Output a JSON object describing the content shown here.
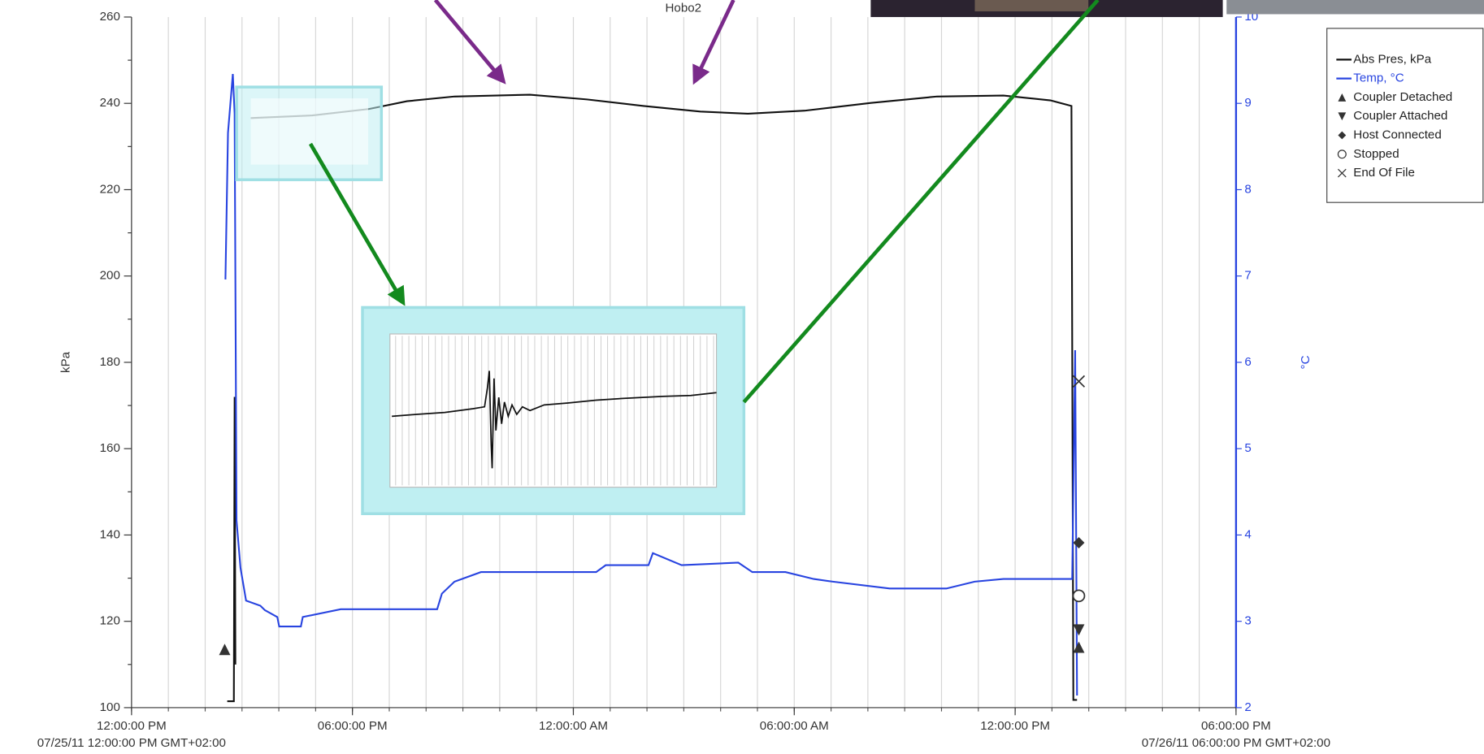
{
  "chart_data": {
    "type": "line",
    "annotations": [
      "Hobo2"
    ],
    "ylabel": "kPa",
    "y2label": "°C",
    "xlim": [
      0,
      30
    ],
    "xticks": [
      {
        "value": 0,
        "label": "12:00:00 PM"
      },
      {
        "value": 6,
        "label": "06:00:00 PM"
      },
      {
        "value": 12,
        "label": "12:00:00 AM"
      },
      {
        "value": 18,
        "label": "06:00:00 AM"
      },
      {
        "value": 24,
        "label": "12:00:00 PM"
      },
      {
        "value": 30,
        "label": "06:00:00 PM"
      }
    ],
    "x_range_labels": [
      "07/25/11 12:00:00 PM GMT+02:00",
      "07/26/11 06:00:00 PM GMT+02:00"
    ],
    "xminorticks": [
      0,
      1,
      2,
      3,
      4,
      5,
      6,
      7,
      8,
      9,
      10,
      11,
      12,
      13,
      14,
      15,
      16,
      17,
      18,
      19,
      20,
      21,
      22,
      23,
      24,
      25,
      26,
      27,
      28,
      29,
      30
    ],
    "ylim": [
      100,
      260
    ],
    "yticks": [
      100,
      120,
      140,
      160,
      180,
      200,
      220,
      240,
      260
    ],
    "yminorticks": [
      110,
      130,
      150,
      170,
      190,
      210,
      230,
      250
    ],
    "y2lim": [
      2,
      10
    ],
    "y2ticks": [
      2,
      3,
      4,
      5,
      6,
      7,
      8,
      9,
      10
    ],
    "grid": true,
    "legend": "upper right",
    "series": [
      {
        "name": "Abs Pres, kPa",
        "color": "#111111",
        "marker": "line",
        "x": [
          2.6,
          2.78,
          2.8,
          2.82,
          3.0,
          3.24,
          4.91,
          6.45,
          7.48,
          8.77,
          10.82,
          12.37,
          13.91,
          15.45,
          16.74,
          18.28,
          20.08,
          21.88,
          23.68,
          24.96,
          25.53,
          25.58,
          25.68
        ],
        "values": [
          101.5,
          101.5,
          172,
          110,
          null,
          236.6,
          237.2,
          238.7,
          240.5,
          241.6,
          242.0,
          240.9,
          239.4,
          238.1,
          237.6,
          238.3,
          240.1,
          241.6,
          241.8,
          240.7,
          239.4,
          101.8,
          101.8
        ]
      },
      {
        "name": "Temp, °C",
        "color": "#2844e0",
        "marker": "line",
        "axis": "y2",
        "x": [
          2.55,
          2.62,
          2.75,
          2.8,
          2.85,
          2.96,
          3.11,
          3.5,
          3.62,
          3.96,
          4.01,
          4.6,
          4.65,
          5.68,
          8.3,
          8.43,
          8.77,
          9.49,
          12.62,
          12.88,
          14.04,
          14.16,
          14.94,
          16.48,
          16.86,
          17.76,
          18.53,
          19.05,
          20.59,
          22.13,
          22.9,
          23.68,
          25.55,
          25.63,
          25.68
        ],
        "values": [
          6.96,
          8.66,
          9.34,
          8.88,
          4.17,
          3.62,
          3.24,
          3.18,
          3.13,
          3.05,
          2.94,
          2.94,
          3.05,
          3.14,
          3.14,
          3.32,
          3.46,
          3.57,
          3.57,
          3.65,
          3.65,
          3.79,
          3.65,
          3.68,
          3.57,
          3.57,
          3.49,
          3.46,
          3.38,
          3.38,
          3.46,
          3.49,
          3.49,
          6.14,
          2.14
        ]
      },
      {
        "name": "Coupler Detached",
        "color": "#333333",
        "marker": "triangle-up",
        "x": [
          2.53,
          25.73
        ],
        "values": [
          113.5,
          114.0
        ]
      },
      {
        "name": "Coupler Attached",
        "color": "#333333",
        "marker": "triangle-down",
        "x": [
          25.73
        ],
        "values": [
          118.0
        ]
      },
      {
        "name": "Host Connected",
        "color": "#333333",
        "marker": "diamond",
        "x": [
          25.73
        ],
        "values": [
          138.2
        ]
      },
      {
        "name": "Stopped",
        "color": "#333333",
        "marker": "circle-open",
        "x": [
          25.73
        ],
        "values": [
          125.9
        ]
      },
      {
        "name": "End Of File",
        "color": "#333333",
        "marker": "x",
        "x": [
          25.73
        ],
        "values": [
          175.6
        ]
      }
    ]
  }
}
